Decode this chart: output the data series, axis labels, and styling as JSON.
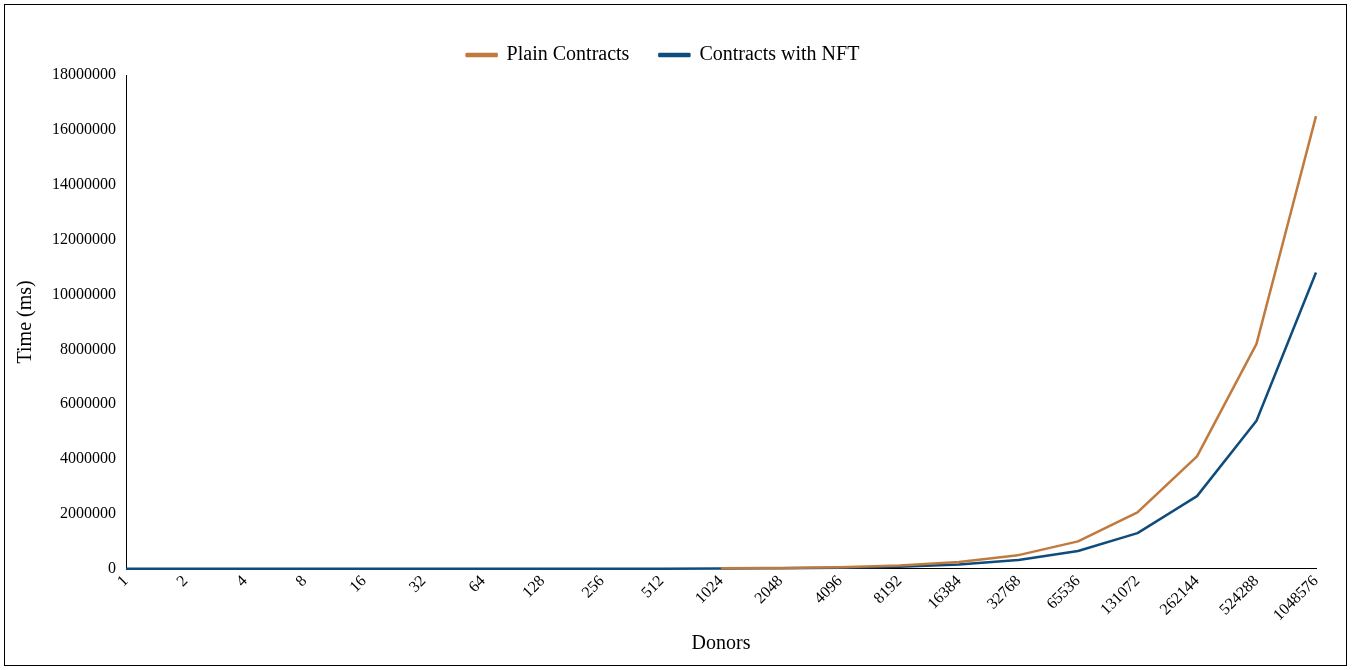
{
  "chart_data": {
    "type": "line",
    "xlabel": "Donors",
    "ylabel": "Time (ms)",
    "categories": [
      "1",
      "2",
      "4",
      "8",
      "16",
      "32",
      "64",
      "128",
      "256",
      "512",
      "1024",
      "2048",
      "4096",
      "8192",
      "16384",
      "32768",
      "65536",
      "131072",
      "262144",
      "524288",
      "1048576"
    ],
    "series": [
      {
        "name": "Plain Contracts",
        "color": "#c07a3e",
        "values": [
          null,
          null,
          null,
          null,
          null,
          null,
          null,
          null,
          null,
          null,
          20000,
          30000,
          60000,
          120000,
          250000,
          500000,
          1000000,
          2060000,
          4100000,
          8200000,
          16500000
        ]
      },
      {
        "name": "Contracts with NFT",
        "color": "#0f4c7c",
        "values": [
          0,
          0,
          0,
          0,
          0,
          0,
          0,
          0,
          0,
          0,
          10000,
          20000,
          40000,
          80000,
          160000,
          320000,
          650000,
          1300000,
          2650000,
          5400000,
          10800000
        ]
      }
    ],
    "ylim": [
      0,
      18000000
    ],
    "yticks": [
      0,
      2000000,
      4000000,
      6000000,
      8000000,
      10000000,
      12000000,
      14000000,
      16000000,
      18000000
    ],
    "grid": false,
    "legend": "top",
    "marker": "none",
    "line_style": "solid"
  }
}
